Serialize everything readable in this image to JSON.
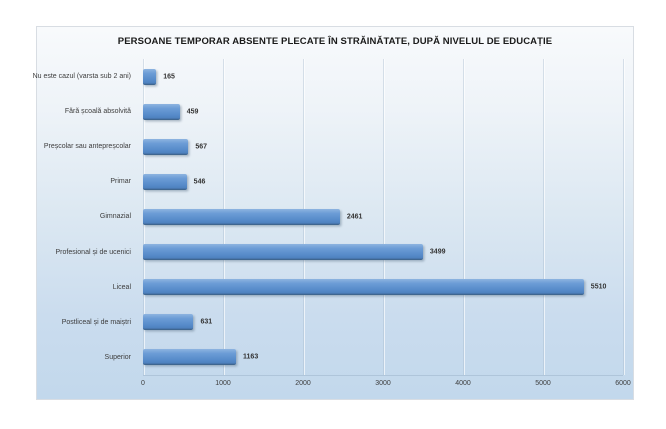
{
  "title": "PERSOANE TEMPORAR ABSENTE PLECATE ÎN STRĂINĂTATE, DUPĂ NIVELUL DE EDUCAȚIE",
  "chart_data": {
    "type": "bar",
    "orientation": "horizontal",
    "title": "PERSOANE TEMPORAR ABSENTE PLECATE ÎN STRĂINĂTATE, DUPĂ NIVELUL DE EDUCAȚIE",
    "categories": [
      "Nu este cazul (varsta sub 2 ani)",
      "Fără școală absolvită",
      "Preșcolar sau antepreșcolar",
      "Primar",
      "Gimnazial",
      "Profesional și de ucenici",
      "Liceal",
      "Postliceal și de maiștri",
      "Superior"
    ],
    "values": [
      165,
      459,
      567,
      546,
      2461,
      3499,
      5510,
      631,
      1163
    ],
    "x_ticks": [
      0,
      1000,
      2000,
      3000,
      4000,
      5000,
      6000
    ],
    "xlim": [
      0,
      6000
    ],
    "xlabel": "",
    "ylabel": "",
    "grid": true,
    "legend": "none",
    "data_labels": true,
    "colors": {
      "bar_main": "#5b8fcd",
      "bar_light": "#8db4e0",
      "bar_dark": "#41699a",
      "plot_bg_top": "#f8fafc",
      "plot_bg_bottom": "#c2d8ec",
      "text": "#3d3d3d",
      "title_text": "#1a1a1a",
      "gridline": "#aabcd0"
    }
  }
}
